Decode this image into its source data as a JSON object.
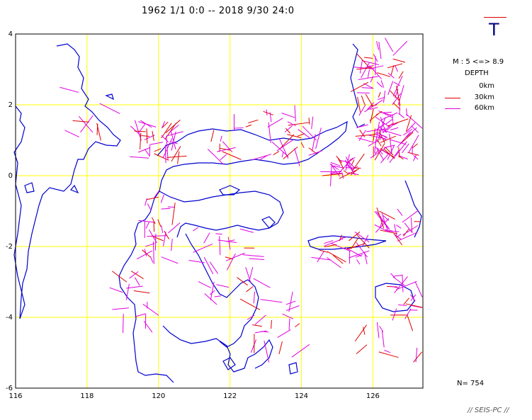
{
  "title": "1962 1/1 0:0 -- 2018 9/30 24:0",
  "badge_letter": "T",
  "legend": {
    "magnitude": "M : 5 <=> 8.9",
    "depth_title": "DEPTH",
    "entries": [
      {
        "label": "0km",
        "color": "#ffffff"
      },
      {
        "label": "30km",
        "color": "#e00000"
      },
      {
        "label": "60km",
        "color": "#e000e0"
      }
    ]
  },
  "count": "N= 754",
  "credit": "// SEIS-PC //",
  "axes": {
    "lon_ticks": [
      "116",
      "118",
      "120",
      "122",
      "124",
      "126"
    ],
    "lat_ticks": [
      "4",
      "2",
      "0",
      "-2",
      "-4",
      "-6"
    ],
    "lon_range": [
      116,
      127.4
    ],
    "lat_range": [
      -6,
      4
    ]
  },
  "colors": {
    "coast": "#0000d0",
    "grid": "#ffff00",
    "shallow": "#e00000",
    "deep": "#e000e0"
  }
}
